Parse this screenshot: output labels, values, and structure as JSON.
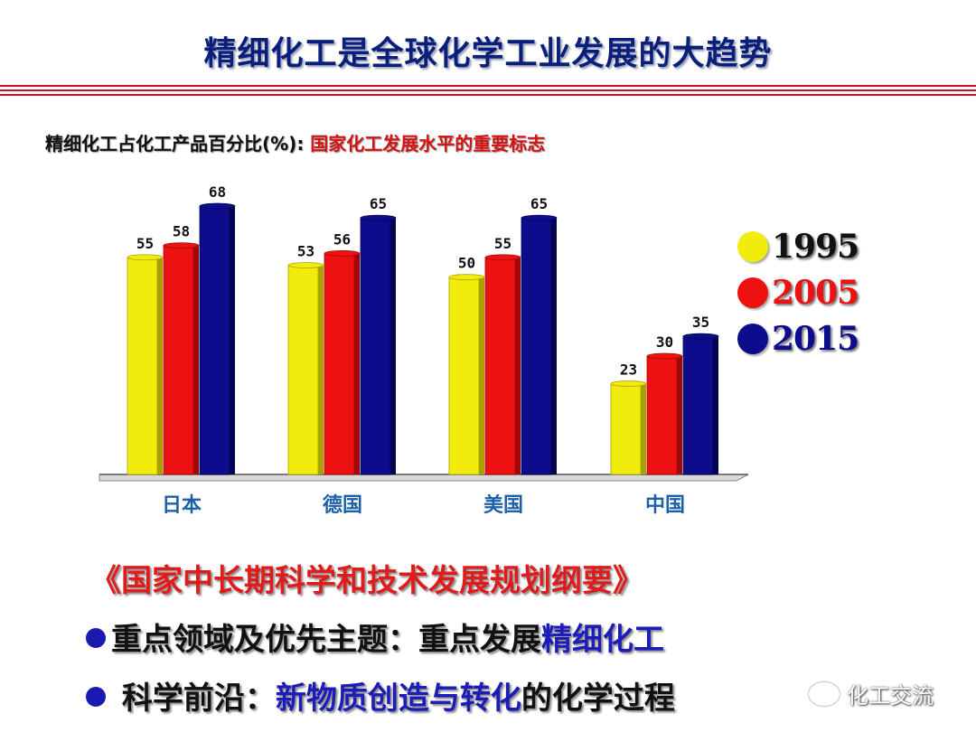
{
  "header": {
    "title": "精细化工是全球化学工业发展的大趋势"
  },
  "subtitle": {
    "prefix": "精细化工占化工产品百分比(%):",
    "highlight": " 国家化工发展水平的重要标志"
  },
  "colors": {
    "y1995": "#f2ec0c",
    "y2005": "#ee1111",
    "y2015": "#0c0c8c",
    "title": "#0a1f7a",
    "accent": "#d21414"
  },
  "chart_data": {
    "type": "bar",
    "categories": [
      "日本",
      "德国",
      "美国",
      "中国"
    ],
    "series": [
      {
        "name": "1995",
        "values": [
          55,
          53,
          50,
          23
        ]
      },
      {
        "name": "2005",
        "values": [
          58,
          56,
          55,
          30
        ]
      },
      {
        "name": "2015",
        "values": [
          68,
          65,
          65,
          35
        ]
      }
    ],
    "title": "精细化工占化工产品百分比(%)",
    "ylim": [
      0,
      68
    ],
    "grid": false,
    "legend": "right"
  },
  "plan": {
    "title": "《国家中长期科学和技术发展规划纲要》",
    "line1_a": "重点领域及优先主题：重点发展",
    "line1_b": "精细化工",
    "line2_a": " 科学前沿：",
    "line2_b": "新物质创造与转化",
    "line2_c": "的化学过程"
  },
  "watermark": {
    "text": "化工交流"
  }
}
